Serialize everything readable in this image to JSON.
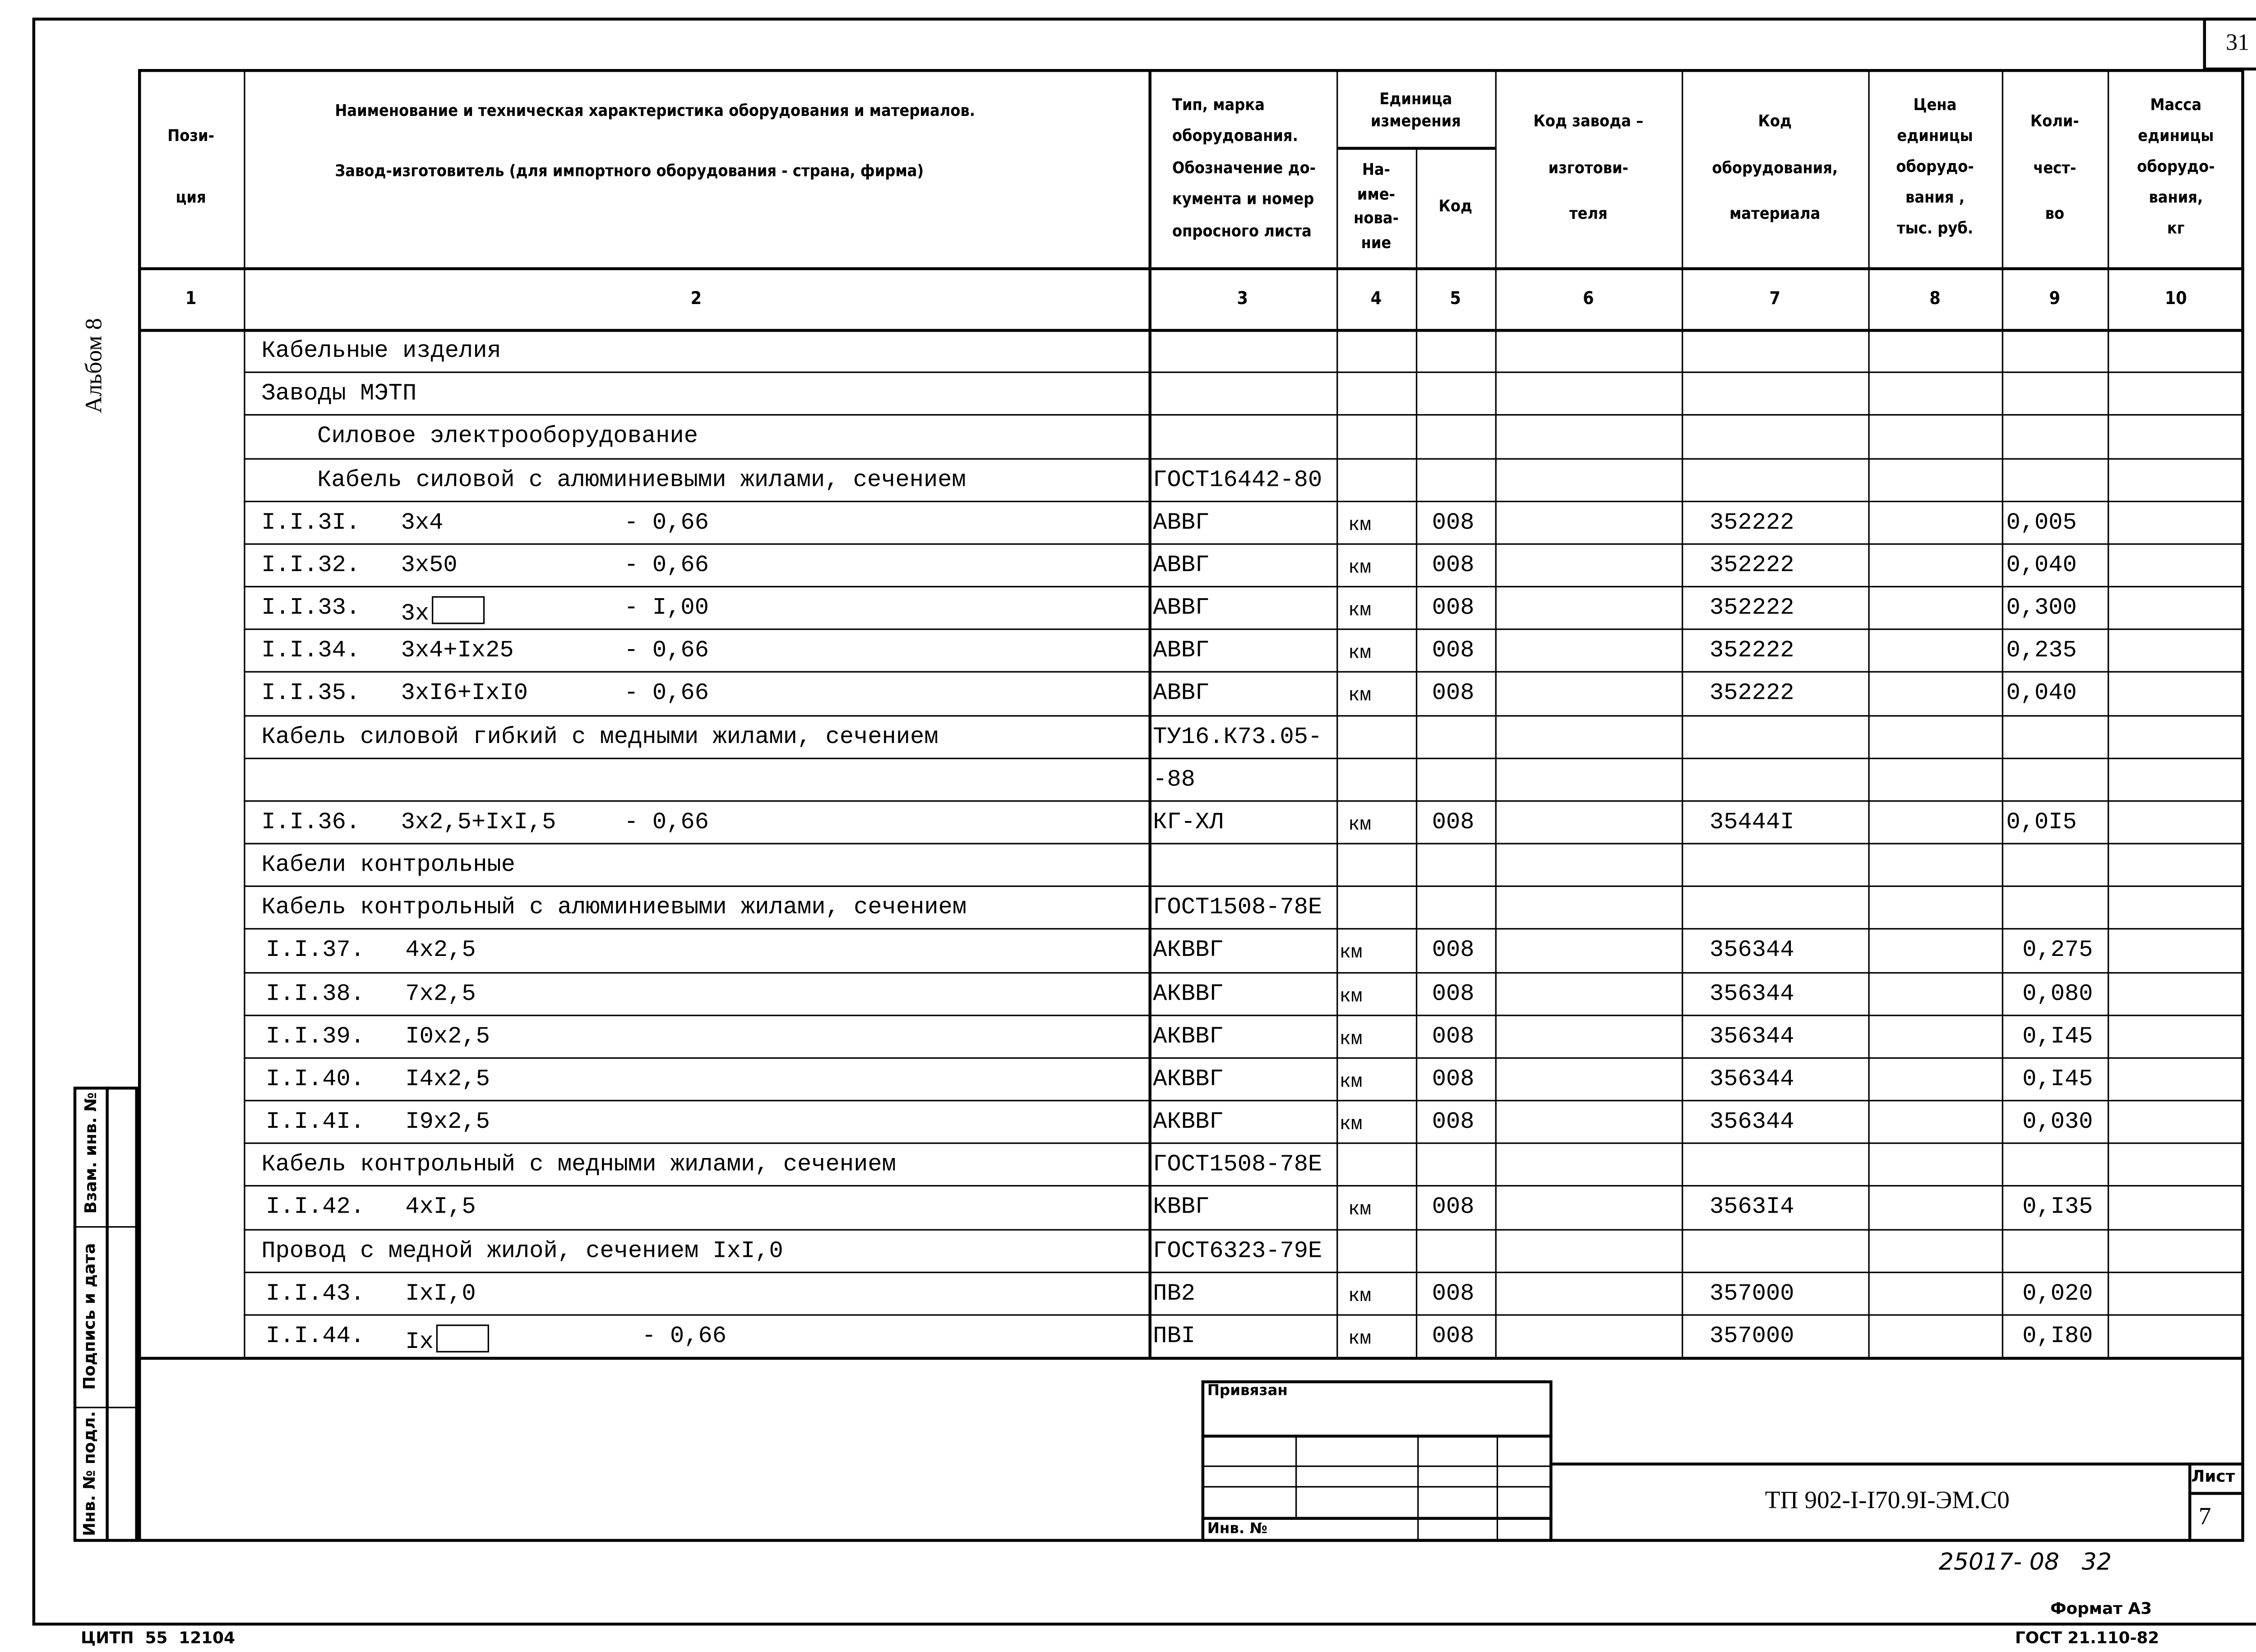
{
  "sheet_number": "31",
  "album": "Альбом 8",
  "header": {
    "col1": "Пози-\n\nция",
    "col2": "Наименование и техническая характеристика  оборудования и материалов.\n\nЗавод-изготовитель  (для импортного оборудования -  страна, фирма)",
    "col3": "Тип,      марка\nоборудования.\nОбозначение  до-\nкумента и номер\nопросного листа",
    "unit_group": "Единица\nизмерения",
    "col4": "На-\nиме-\nнова-\nние",
    "col5": "Код",
    "col6": "Код  завода –\n\nизготови-\n\nтеля",
    "col7": "Код\n\nоборудования,\n\nматериала",
    "col8": "Цена\nединицы\nоборудо-\nвания ,\nтыс. руб.",
    "col9": "Коли-\n\nчест-\n\nво",
    "col10": "Масса\nединицы\nоборудо-\nвания,\nкг"
  },
  "column_numbers": [
    "1",
    "2",
    "3",
    "4",
    "5",
    "6",
    "7",
    "8",
    "9",
    "10"
  ],
  "rows": [
    {
      "name": "Кабельные изделия",
      "indent": 0
    },
    {
      "name": "Заводы  МЭТП",
      "indent": 0
    },
    {
      "name": "Силовое электрооборудование",
      "indent": 1
    },
    {
      "name": "Кабель силовой с алюминиевыми жилами, сечением",
      "indent": 1,
      "type": "ГОСТ16442-80"
    },
    {
      "pos": "I.I.3I.",
      "size": "3х4",
      "volt": "- 0,66",
      "type": "АВВГ",
      "unit": "км",
      "code": "008",
      "mat": "352222",
      "qty": "0,005"
    },
    {
      "pos": "I.I.32.",
      "size": "3х50",
      "volt": "- 0,66",
      "type": "АВВГ",
      "unit": "км",
      "code": "008",
      "mat": "352222",
      "qty": "0,040"
    },
    {
      "pos": "I.I.33.",
      "size": "3х",
      "box": true,
      "volt": "- I,00",
      "type": "АВВГ",
      "unit": "км",
      "code": "008",
      "mat": "352222",
      "qty": "0,300"
    },
    {
      "pos": "I.I.34.",
      "size": "3х4+Iх25",
      "volt": "- 0,66",
      "type": "АВВГ",
      "unit": "км",
      "code": "008",
      "mat": "352222",
      "qty": "0,235"
    },
    {
      "pos": "I.I.35.",
      "size": "3хI6+IхI0",
      "volt": "- 0,66",
      "type": "АВВГ",
      "unit": "км",
      "code": "008",
      "mat": "352222",
      "qty": "0,040"
    },
    {
      "name": "Кабель силовой гибкий с медными жилами, сечением",
      "indent": 0,
      "type": "ТУ16.К73.05-"
    },
    {
      "type": "-88"
    },
    {
      "pos": "I.I.36.",
      "size": "3х2,5+IхI,5",
      "volt": "- 0,66",
      "type": "КГ-ХЛ",
      "unit": "км",
      "code": "008",
      "mat": "35444I",
      "qty": "0,0I5"
    },
    {
      "name": "Кабели контрольные",
      "indent": 0
    },
    {
      "name": "Кабель контрольный с алюминиевыми жилами, сечением",
      "indent": 0,
      "type": "ГОСТ1508-78Е"
    },
    {
      "pos": "I.I.37.",
      "size": "4х2,5",
      "type": "АКВВГ",
      "unit": "км",
      "code": "008",
      "mat": "356344",
      "qty": "0,275"
    },
    {
      "pos": "I.I.38.",
      "size": "7х2,5",
      "type": "АКВВГ",
      "unit": "км",
      "code": "008",
      "mat": "356344",
      "qty": "0,080"
    },
    {
      "pos": "I.I.39.",
      "size": "I0х2,5",
      "type": "АКВВГ",
      "unit": "км",
      "code": "008",
      "mat": "356344",
      "qty": "0,I45"
    },
    {
      "pos": "I.I.40.",
      "size": "I4х2,5",
      "type": "АКВВГ",
      "unit": "км",
      "code": "008",
      "mat": "356344",
      "qty": "0,I45"
    },
    {
      "pos": "I.I.4I.",
      "size": "I9х2,5",
      "type": "АКВВГ",
      "unit": "км",
      "code": "008",
      "mat": "356344",
      "qty": "0,030"
    },
    {
      "name": "Кабель контрольный с медными жилами, сечением",
      "indent": 0,
      "type": "ГОСТ1508-78Е"
    },
    {
      "pos": "I.I.42.",
      "size": "4хI,5",
      "type": "КВВГ",
      "unit": "км",
      "code": "008",
      "mat": "3563I4",
      "qty": "0,I35"
    },
    {
      "name": "Провод с медной жилой, сечением IхI,0",
      "indent": 0,
      "type": "ГОСТ6323-79Е"
    },
    {
      "pos": "I.I.43.",
      "size": "IхI,0",
      "type": "ПВ2",
      "unit": "км",
      "code": "008",
      "mat": "357000",
      "qty": "0,020"
    },
    {
      "pos": "I.I.44.",
      "size": "Iх",
      "box": true,
      "volt": "- 0,66",
      "type": "ПВI",
      "unit": "км",
      "code": "008",
      "mat": "357000",
      "qty": "0,I80"
    }
  ],
  "side_stamp": {
    "replace_inv": "Взам. инв. №",
    "signature_date": "Подпись и дата",
    "inv_original": "Инв. № подл."
  },
  "stamp": {
    "linked": "Привязан",
    "inv_no": "Инв. №",
    "doc_code": "ТП 902-I-I70.9I-ЭМ.С0",
    "sheet_label": "Лист",
    "sheet_value": "7"
  },
  "handwritten": "25017- 08   32",
  "format": "Формат А3",
  "gost": "ГОСТ 21.110-82",
  "printer": "ЦИТП  55  12104"
}
